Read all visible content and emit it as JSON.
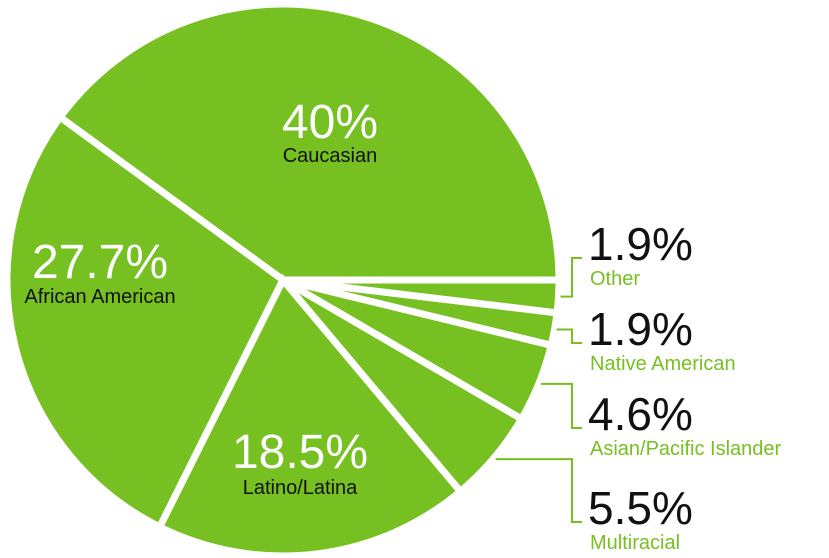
{
  "chart_data": {
    "type": "pie",
    "categories": [
      "Caucasian",
      "African American",
      "Latino/Latina",
      "Multiracial",
      "Asian/Pacific Islander",
      "Native American",
      "Other"
    ],
    "values": [
      40,
      27.7,
      18.5,
      5.5,
      4.6,
      1.9,
      1.9
    ],
    "value_labels": [
      "40%",
      "27.7%",
      "18.5%",
      "5.5%",
      "4.6%",
      "1.9%",
      "1.9%"
    ],
    "color": "#76c021"
  }
}
